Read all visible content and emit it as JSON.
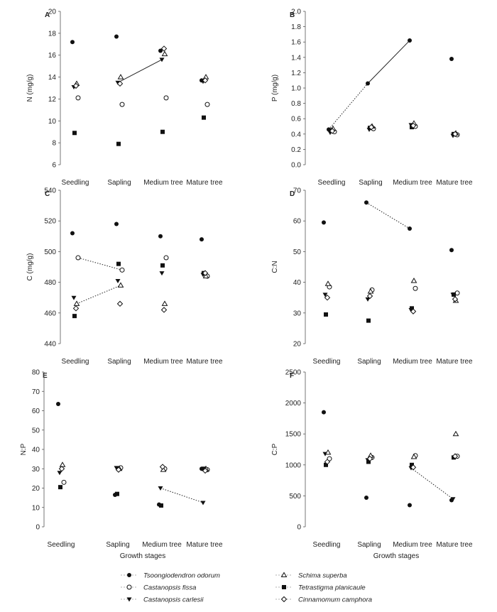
{
  "figure": {
    "stage_labels": [
      "Seedling",
      "Sapling",
      "Medium tree",
      "Mature tree"
    ],
    "growth_stage_title": "Growth stages",
    "legend": [
      {
        "marker": "dot",
        "label": "Tsoongiodendron odorum"
      },
      {
        "marker": "circle",
        "label": "Castanopsis fissa"
      },
      {
        "marker": "triangle",
        "label": "Castanopsis carlesii"
      },
      {
        "marker": "tri-open",
        "label": "Schima superba"
      },
      {
        "marker": "square",
        "label": "Tetrastigma planicaule"
      },
      {
        "marker": "diamond",
        "label": "Cinnamomum camphora"
      }
    ]
  },
  "chart_data": [
    {
      "type": "scatter",
      "panel": "A",
      "ylabel": "N (mg/g)",
      "ylim": [
        6,
        20
      ],
      "yticks": [
        6,
        8,
        10,
        12,
        14,
        16,
        18,
        20
      ],
      "categories": [
        "Seedling",
        "Sapling",
        "Medium tree",
        "Mature tree"
      ],
      "series": [
        {
          "values": [
            17.2,
            17.7,
            16.4,
            13.7
          ]
        },
        {
          "values": [
            12.1,
            11.5,
            12.1,
            11.5
          ]
        },
        {
          "values": [
            13.1,
            13.5,
            15.6,
            13.6
          ]
        },
        {
          "values": [
            13.4,
            14.0,
            16.1,
            14.0
          ]
        },
        {
          "values": [
            8.9,
            7.9,
            9.0,
            10.3
          ]
        },
        {
          "values": [
            13.2,
            13.4,
            16.6,
            13.7
          ]
        }
      ],
      "lines": [
        {
          "series": 2,
          "from": 1,
          "to": 2
        }
      ]
    },
    {
      "type": "scatter",
      "panel": "B",
      "ylabel": "P (mg/g)",
      "ylim": [
        0,
        2.0
      ],
      "yticks": [
        0.0,
        0.2,
        0.4,
        0.6,
        0.8,
        1.0,
        1.2,
        1.4,
        1.6,
        1.8,
        2.0
      ],
      "categories": [
        "Seedling",
        "Sapling",
        "Medium tree",
        "Mature tree"
      ],
      "series": [
        {
          "values": [
            0.46,
            1.06,
            1.62,
            1.38
          ]
        },
        {
          "values": [
            0.43,
            0.47,
            0.5,
            0.39
          ]
        },
        {
          "values": [
            0.42,
            0.46,
            0.52,
            0.38
          ]
        },
        {
          "values": [
            0.47,
            0.5,
            0.54,
            0.41
          ]
        },
        {
          "values": [
            0.45,
            0.48,
            0.49,
            0.4
          ]
        },
        {
          "values": [
            0.44,
            0.49,
            0.51,
            0.4
          ]
        }
      ],
      "lines": [
        {
          "series": 0,
          "from": 2,
          "to": 1
        },
        {
          "series": 0,
          "from": 0,
          "to": 1,
          "dotted": true
        }
      ]
    },
    {
      "type": "scatter",
      "panel": "C",
      "ylabel": "C (mg/g)",
      "ylim": [
        440,
        540
      ],
      "yticks": [
        440,
        460,
        480,
        500,
        520,
        540
      ],
      "categories": [
        "Seedling",
        "Sapling",
        "Medium tree",
        "Mature tree"
      ],
      "series": [
        {
          "values": [
            512,
            518,
            510,
            508
          ]
        },
        {
          "values": [
            496,
            488,
            496,
            484
          ]
        },
        {
          "values": [
            470,
            481,
            486,
            485
          ]
        },
        {
          "values": [
            466,
            478,
            466,
            484
          ]
        },
        {
          "values": [
            458,
            492,
            491,
            486
          ]
        },
        {
          "values": [
            463,
            466,
            462,
            486
          ]
        }
      ],
      "lines": [
        {
          "series": 1,
          "from": 0,
          "to": 1,
          "dotted": true
        },
        {
          "series": 3,
          "from": 0,
          "to": 1,
          "dotted": true
        }
      ]
    },
    {
      "type": "scatter",
      "panel": "D",
      "ylabel": "C:N",
      "ylim": [
        20,
        70
      ],
      "yticks": [
        20,
        30,
        40,
        50,
        60,
        70
      ],
      "categories": [
        "Seedling",
        "Sapling",
        "Medium tree",
        "Mature tree"
      ],
      "series": [
        {
          "values": [
            59.5,
            66.0,
            57.5,
            50.5
          ]
        },
        {
          "values": [
            38.5,
            37.5,
            38.0,
            36.5
          ]
        },
        {
          "values": [
            36.0,
            34.5,
            31.0,
            36.0
          ]
        },
        {
          "values": [
            39.5,
            37.0,
            40.5,
            34.0
          ]
        },
        {
          "values": [
            29.5,
            27.5,
            31.5,
            36.0
          ]
        },
        {
          "values": [
            35.0,
            35.5,
            30.5,
            34.5
          ]
        }
      ],
      "lines": [
        {
          "series": 0,
          "from": 1,
          "to": 2,
          "dotted": true
        }
      ]
    },
    {
      "type": "scatter",
      "panel": "E",
      "ylabel": "N:P",
      "ylim": [
        0,
        80
      ],
      "yticks": [
        0,
        10,
        20,
        30,
        40,
        50,
        60,
        70,
        80
      ],
      "categories": [
        "Seedling",
        "Sapling",
        "Medium tree",
        "Mature tree"
      ],
      "series": [
        {
          "values": [
            63.5,
            16.5,
            11.5,
            30.0
          ]
        },
        {
          "values": [
            23.0,
            30.5,
            30.0,
            29.5
          ]
        },
        {
          "values": [
            28.0,
            30.5,
            20.0,
            12.5
          ]
        },
        {
          "values": [
            32.0,
            30.0,
            29.5,
            30.0
          ]
        },
        {
          "values": [
            20.5,
            17.0,
            11.0,
            30.0
          ]
        },
        {
          "values": [
            30.0,
            29.5,
            31.0,
            29.0
          ]
        }
      ],
      "lines": [
        {
          "series": 2,
          "from": 2,
          "to": 3,
          "dotted": true
        }
      ]
    },
    {
      "type": "scatter",
      "panel": "F",
      "ylabel": "C:P",
      "ylim": [
        0,
        2500
      ],
      "yticks": [
        0,
        500,
        1000,
        1500,
        2000,
        2500
      ],
      "categories": [
        "Seedling",
        "Sapling",
        "Medium tree",
        "Mature tree"
      ],
      "series": [
        {
          "values": [
            1850,
            470,
            350,
            430
          ]
        },
        {
          "values": [
            1100,
            1120,
            1150,
            1140
          ]
        },
        {
          "values": [
            1180,
            1080,
            950,
            450
          ]
        },
        {
          "values": [
            1200,
            1150,
            1130,
            1500
          ]
        },
        {
          "values": [
            1000,
            1050,
            1000,
            1120
          ]
        },
        {
          "values": [
            1050,
            1100,
            960,
            1140
          ]
        }
      ],
      "lines": [
        {
          "series": 2,
          "from": 2,
          "to": 3,
          "dotted": true
        }
      ]
    }
  ]
}
